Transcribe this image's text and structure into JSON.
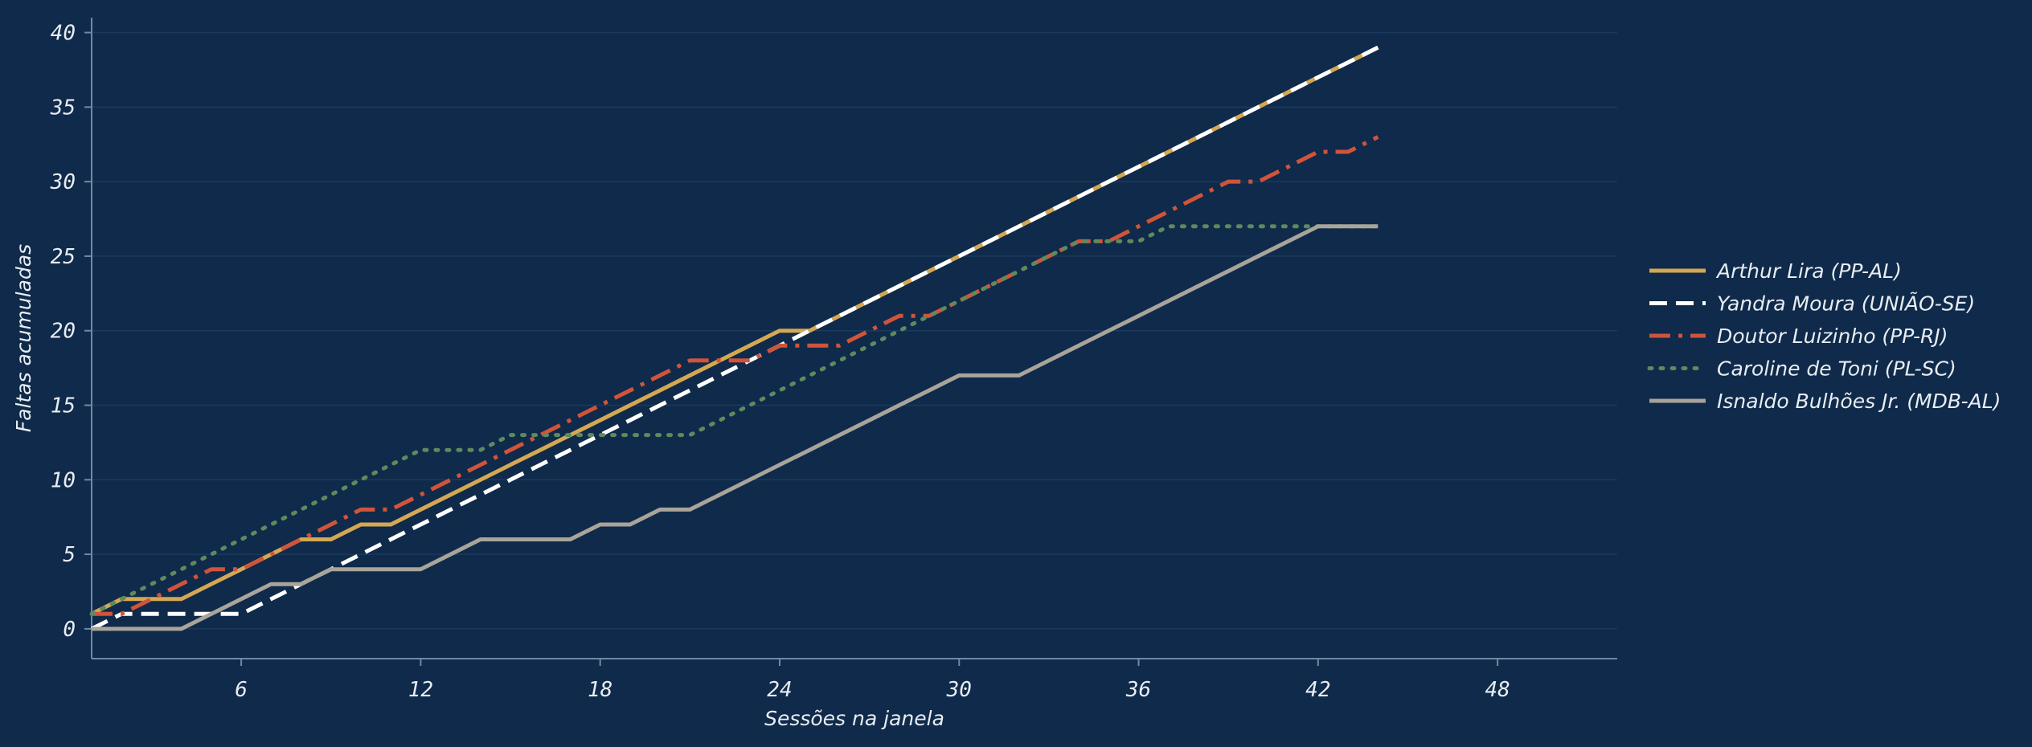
{
  "chart_data": {
    "type": "line",
    "title": "",
    "xlabel": "Sessões na janela",
    "ylabel": "Faltas acumuladas",
    "xlim": [
      1,
      52
    ],
    "ylim": [
      -2,
      41
    ],
    "xticks": [
      6,
      12,
      18,
      24,
      30,
      36,
      42,
      48
    ],
    "yticks": [
      0,
      5,
      10,
      15,
      20,
      25,
      30,
      35,
      40
    ],
    "grid": "horizontal",
    "legend_position": "right",
    "x": [
      1,
      2,
      3,
      4,
      5,
      6,
      7,
      8,
      9,
      10,
      11,
      12,
      13,
      14,
      15,
      16,
      17,
      18,
      19,
      20,
      21,
      22,
      23,
      24,
      25,
      26,
      27,
      28,
      29,
      30,
      31,
      32,
      33,
      34,
      35,
      36,
      37,
      38,
      39,
      40,
      41,
      42,
      43,
      44
    ],
    "series": [
      {
        "name": "Arthur Lira (PP-AL)",
        "color": "#d4a853",
        "dash": "solid",
        "values": [
          1,
          2,
          2,
          2,
          3,
          4,
          5,
          6,
          6,
          7,
          7,
          8,
          9,
          10,
          11,
          12,
          13,
          14,
          15,
          16,
          17,
          18,
          19,
          20,
          20,
          21,
          22,
          23,
          24,
          25,
          26,
          27,
          28,
          29,
          30,
          31,
          32,
          33,
          34,
          35,
          36,
          37,
          38,
          39
        ]
      },
      {
        "name": "Yandra Moura (UNIÃO-SE)",
        "color": "#ffffff",
        "dash": "dashed",
        "values": [
          0,
          1,
          1,
          1,
          1,
          1,
          2,
          3,
          4,
          5,
          6,
          7,
          8,
          9,
          10,
          11,
          12,
          13,
          14,
          15,
          16,
          17,
          18,
          19,
          20,
          21,
          22,
          23,
          24,
          25,
          26,
          27,
          28,
          29,
          30,
          31,
          32,
          33,
          34,
          35,
          36,
          37,
          38,
          39
        ]
      },
      {
        "name": "Doutor Luizinho (PP-RJ)",
        "color": "#d1543a",
        "dash": "dashdot",
        "values": [
          1,
          1,
          2,
          3,
          4,
          4,
          5,
          6,
          7,
          8,
          8,
          9,
          10,
          11,
          12,
          13,
          14,
          15,
          16,
          17,
          18,
          18,
          18,
          19,
          19,
          19,
          20,
          21,
          21,
          22,
          23,
          24,
          25,
          26,
          26,
          27,
          28,
          29,
          30,
          30,
          31,
          32,
          32,
          33
        ]
      },
      {
        "name": "Caroline de Toni (PL-SC)",
        "color": "#5e8a5e",
        "dash": "dotted",
        "values": [
          1,
          2,
          3,
          4,
          5,
          6,
          7,
          8,
          9,
          10,
          11,
          12,
          12,
          12,
          13,
          13,
          13,
          13,
          13,
          13,
          13,
          14,
          15,
          16,
          17,
          18,
          19,
          20,
          21,
          22,
          23,
          24,
          25,
          26,
          26,
          26,
          27,
          27,
          27,
          27,
          27,
          27,
          27,
          27
        ]
      },
      {
        "name": "Isnaldo Bulhões Jr. (MDB-AL)",
        "color": "#a9a49a",
        "dash": "solid",
        "values": [
          0,
          0,
          0,
          0,
          1,
          2,
          3,
          3,
          4,
          4,
          4,
          4,
          5,
          6,
          6,
          6,
          6,
          7,
          7,
          8,
          8,
          9,
          10,
          11,
          12,
          13,
          14,
          15,
          16,
          17,
          17,
          17,
          18,
          19,
          20,
          21,
          22,
          23,
          24,
          25,
          26,
          27,
          27,
          27
        ]
      }
    ]
  }
}
